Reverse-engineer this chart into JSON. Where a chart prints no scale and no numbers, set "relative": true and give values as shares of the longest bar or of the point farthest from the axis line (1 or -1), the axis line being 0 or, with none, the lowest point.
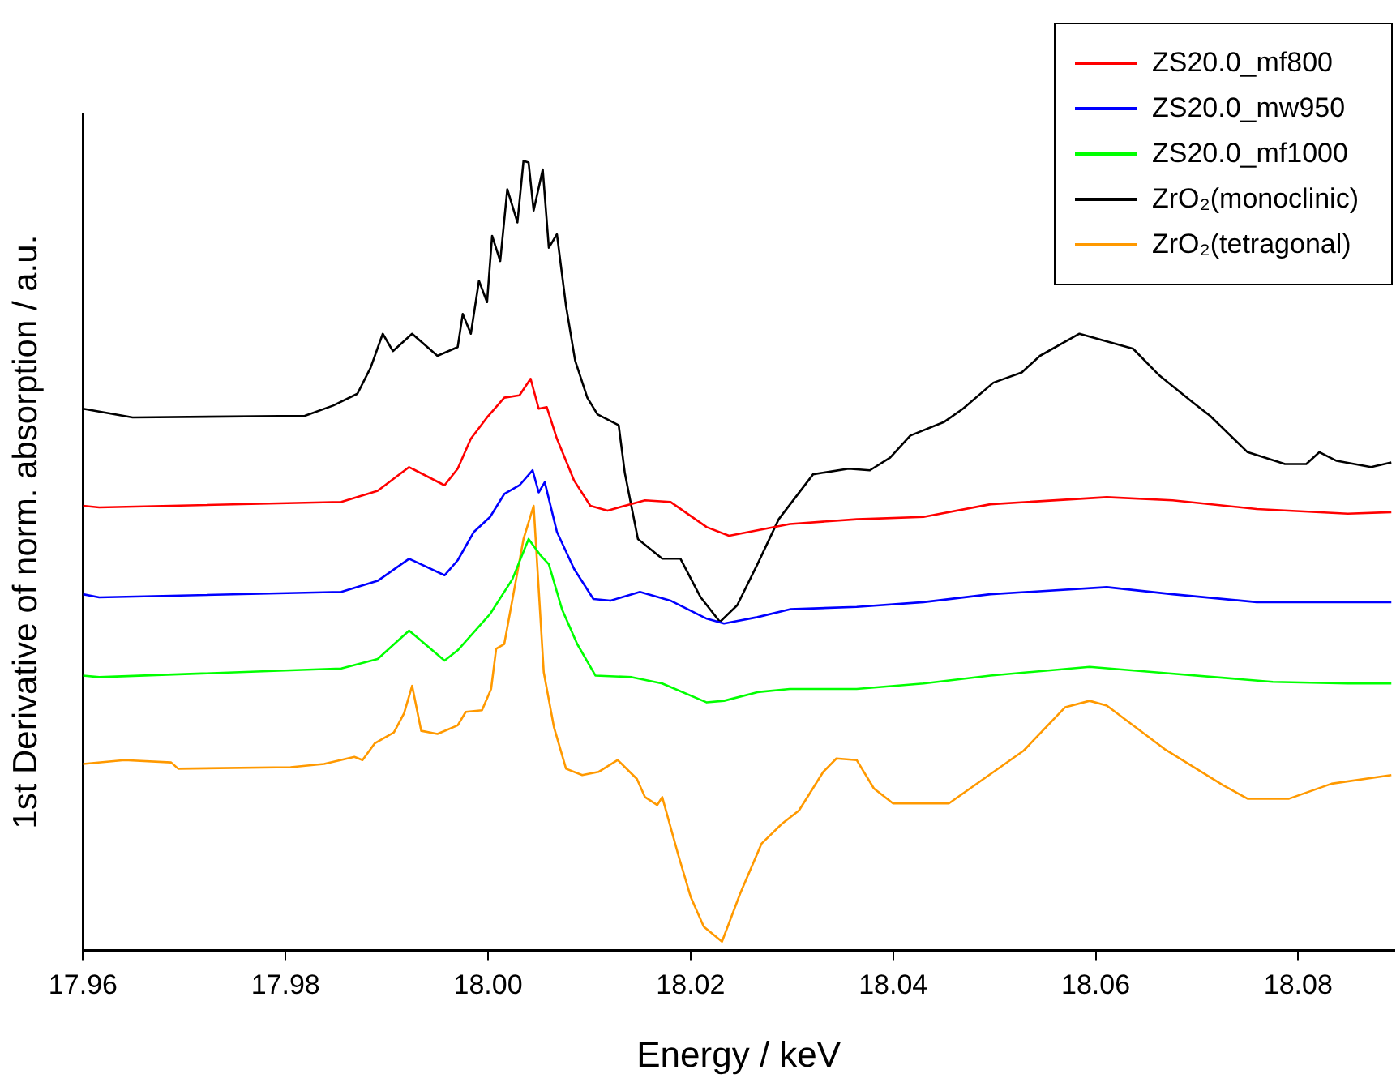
{
  "chart_data": {
    "type": "line",
    "xlabel": "Energy / keV",
    "ylabel": "1st Derivative of norm. absorption / a.u.",
    "relative": true,
    "legend": "top right",
    "xlim": [
      17.96,
      18.0895
    ],
    "xticks": [
      17.96,
      17.98,
      {
        "value": 18,
        "label": "18.00"
      },
      18.02,
      18.04,
      18.06,
      18.08
    ],
    "series": [
      {
        "name": "ZS20.0_mf800",
        "color": "#ff0000",
        "x": [
          17.96,
          17.9616,
          17.9855,
          17.9891,
          17.9922,
          17.9957,
          17.997,
          17.9983,
          17.9999,
          18.0016,
          18.0031,
          18.0042,
          18.005,
          18.0058,
          18.0068,
          18.0085,
          18.0101,
          18.0118,
          18.0155,
          18.018,
          18.0216,
          18.0238,
          18.0266,
          18.0298,
          18.0364,
          18.043,
          18.0496,
          18.0611,
          18.0676,
          18.0759,
          18.0849,
          18.0892
        ],
        "values": [
          0.563,
          0.561,
          0.568,
          0.582,
          0.612,
          0.589,
          0.61,
          0.648,
          0.675,
          0.7,
          0.703,
          0.724,
          0.686,
          0.688,
          0.648,
          0.595,
          0.563,
          0.557,
          0.57,
          0.568,
          0.536,
          0.525,
          0.532,
          0.54,
          0.546,
          0.549,
          0.565,
          0.574,
          0.57,
          0.559,
          0.553,
          0.555
        ]
      },
      {
        "name": "ZS20.0_mw950",
        "color": "#0000ff",
        "x": [
          17.96,
          17.9616,
          17.9855,
          17.9891,
          17.9922,
          17.9957,
          17.997,
          17.9986,
          18.0002,
          18.0016,
          18.0031,
          18.0044,
          18.005,
          18.0056,
          18.0068,
          18.0085,
          18.0104,
          18.0121,
          18.015,
          18.018,
          18.0216,
          18.0233,
          18.0266,
          18.0298,
          18.0364,
          18.043,
          18.0496,
          18.0611,
          18.0676,
          18.0759,
          18.0849,
          18.0892
        ],
        "values": [
          0.451,
          0.447,
          0.454,
          0.468,
          0.496,
          0.475,
          0.494,
          0.53,
          0.549,
          0.578,
          0.589,
          0.608,
          0.58,
          0.593,
          0.53,
          0.483,
          0.445,
          0.443,
          0.454,
          0.443,
          0.42,
          0.414,
          0.422,
          0.432,
          0.435,
          0.441,
          0.451,
          0.46,
          0.451,
          0.441,
          0.441,
          0.441
        ]
      },
      {
        "name": "ZS20.0_mf1000",
        "color": "#00ff00",
        "x": [
          17.96,
          17.9616,
          17.9855,
          17.9891,
          17.9922,
          17.9957,
          17.997,
          18.0002,
          18.0024,
          18.004,
          18.0052,
          18.006,
          18.0073,
          18.0088,
          18.0106,
          18.0142,
          18.0172,
          18.0216,
          18.0233,
          18.0266,
          18.0298,
          18.0364,
          18.043,
          18.0496,
          18.0594,
          18.066,
          18.0775,
          18.0849,
          18.0892
        ],
        "values": [
          0.348,
          0.346,
          0.357,
          0.369,
          0.405,
          0.367,
          0.38,
          0.426,
          0.47,
          0.521,
          0.5,
          0.489,
          0.432,
          0.388,
          0.348,
          0.346,
          0.338,
          0.314,
          0.316,
          0.327,
          0.331,
          0.331,
          0.338,
          0.348,
          0.359,
          0.352,
          0.34,
          0.338,
          0.338
        ]
      },
      {
        "name": "ZrO₂(monoclinic)",
        "color": "#000000",
        "x": [
          17.96,
          17.9649,
          17.9819,
          17.9847,
          17.9871,
          17.9884,
          17.9896,
          17.9906,
          17.9925,
          17.995,
          17.997,
          17.9975,
          17.9983,
          17.9991,
          17.9999,
          18.0004,
          18.0012,
          18.0019,
          18.0029,
          18.0035,
          18.004,
          18.0045,
          18.0054,
          18.006,
          18.0068,
          18.0077,
          18.0086,
          18.0098,
          18.0108,
          18.0129,
          18.0135,
          18.0148,
          18.0172,
          18.019,
          18.021,
          18.0229,
          18.0246,
          18.0266,
          18.0287,
          18.0321,
          18.0356,
          18.0377,
          18.0397,
          18.0417,
          18.045,
          18.0469,
          18.0499,
          18.0527,
          18.0545,
          18.0584,
          18.0637,
          18.0663,
          18.0696,
          18.0713,
          18.075,
          18.0787,
          18.0808,
          18.0821,
          18.0838,
          18.0872,
          18.0892
        ],
        "values": [
          0.686,
          0.675,
          0.677,
          0.69,
          0.705,
          0.738,
          0.781,
          0.759,
          0.781,
          0.753,
          0.764,
          0.806,
          0.781,
          0.848,
          0.821,
          0.905,
          0.873,
          0.964,
          0.922,
          1.0,
          0.998,
          0.937,
          0.989,
          0.89,
          0.907,
          0.816,
          0.747,
          0.7,
          0.679,
          0.665,
          0.605,
          0.521,
          0.496,
          0.496,
          0.447,
          0.416,
          0.437,
          0.489,
          0.546,
          0.603,
          0.61,
          0.608,
          0.624,
          0.652,
          0.669,
          0.686,
          0.719,
          0.732,
          0.753,
          0.781,
          0.762,
          0.728,
          0.694,
          0.677,
          0.631,
          0.616,
          0.616,
          0.631,
          0.62,
          0.612,
          0.618
        ]
      },
      {
        "name": "ZrO₂(tetragonal)",
        "color": "#ff9900",
        "x": [
          17.96,
          17.9641,
          17.9687,
          17.9694,
          17.9805,
          17.9838,
          17.9868,
          17.9876,
          17.9888,
          17.9907,
          17.9917,
          17.9925,
          17.9934,
          17.995,
          17.997,
          17.9978,
          17.9994,
          18.0003,
          18.0008,
          18.0016,
          18.0029,
          18.0035,
          18.0045,
          18.0055,
          18.0065,
          18.0077,
          18.0093,
          18.0109,
          18.0128,
          18.0147,
          18.0155,
          18.0167,
          18.0172,
          18.0188,
          18.02,
          18.0213,
          18.0231,
          18.0249,
          18.027,
          18.029,
          18.0307,
          18.0331,
          18.0344,
          18.0364,
          18.0381,
          18.04,
          18.0455,
          18.0529,
          18.057,
          18.0594,
          18.0611,
          18.0668,
          18.0726,
          18.075,
          18.0791,
          18.0833,
          18.0892
        ],
        "values": [
          0.236,
          0.241,
          0.238,
          0.23,
          0.232,
          0.236,
          0.245,
          0.241,
          0.262,
          0.276,
          0.3,
          0.335,
          0.278,
          0.274,
          0.285,
          0.302,
          0.304,
          0.331,
          0.382,
          0.388,
          0.479,
          0.521,
          0.563,
          0.352,
          0.283,
          0.23,
          0.222,
          0.226,
          0.241,
          0.217,
          0.194,
          0.184,
          0.194,
          0.12,
          0.068,
          0.03,
          0.011,
          0.072,
          0.135,
          0.16,
          0.177,
          0.226,
          0.243,
          0.241,
          0.205,
          0.186,
          0.186,
          0.253,
          0.308,
          0.316,
          0.31,
          0.255,
          0.209,
          0.192,
          0.192,
          0.211,
          0.222
        ]
      }
    ]
  }
}
